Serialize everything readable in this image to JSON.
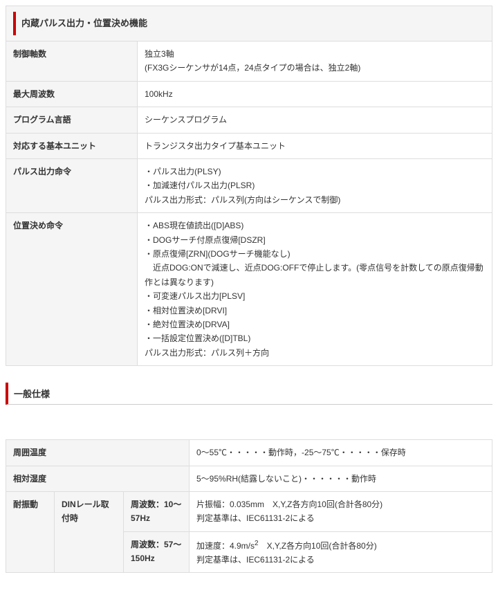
{
  "section1": {
    "title": "内蔵パルス出力・位置決め機能",
    "rows": {
      "control_axes_label": "制御軸数",
      "control_axes_value": "独立3軸\n(FX3Gシーケンサが14点，24点タイプの場合は、独立2軸)",
      "max_freq_label": "最大周波数",
      "max_freq_value": "100kHz",
      "prog_lang_label": "プログラム言語",
      "prog_lang_value": "シーケンスプログラム",
      "base_unit_label": "対応する基本ユニット",
      "base_unit_value": "トランジスタ出力タイプ基本ユニット",
      "pulse_out_label": "パルス出力命令",
      "pulse_out_value": "・パルス出力(PLSY)\n・加減速付パルス出力(PLSR)\nパルス出力形式：パルス列(方向はシーケンスで制御)",
      "pos_cmd_label": "位置決め命令",
      "pos_cmd_value": "・ABS現在値読出([D]ABS)\n・DOGサーチ付原点復帰[DSZR]\n・原点復帰[ZRN](DOGサーチ機能なし)\n　近点DOG:ONで減速し、近点DOG:OFFで停止します。(零点信号を計数しての原点復帰動作とは異なります)\n・可変速パルス出力[PLSV]\n・相対位置決め[DRVI]\n・絶対位置決め[DRVA]\n・一括設定位置決め([D]TBL)\nパルス出力形式：パルス列＋方向"
    }
  },
  "section2": {
    "title": "一般仕様",
    "rows": {
      "ambient_temp_label": "周囲温度",
      "ambient_temp_value": "0～55℃・・・・・動作時，-25～75℃・・・・・保存時",
      "rel_humidity_label": "相対湿度",
      "rel_humidity_value": "5～95%RH(結露しないこと)・・・・・・動作時",
      "vibration_label": "耐振動",
      "vibration_sub_label": "DINレール取付時",
      "vibration_freq1_label": "周波数：10～57Hz",
      "vibration_freq1_value": "片振幅：0.035mm　X,Y,Z各方向10回(合計各80分)\n判定基準は、IEC61131-2による",
      "vibration_freq2_label": "周波数：57～150Hz",
      "vibration_freq2_value_pre": "加速度：4.9m/s",
      "vibration_freq2_value_sup": "2",
      "vibration_freq2_value_post": "　X,Y,Z各方向10回(合計各80分)\n判定基準は、IEC61131-2による"
    }
  }
}
